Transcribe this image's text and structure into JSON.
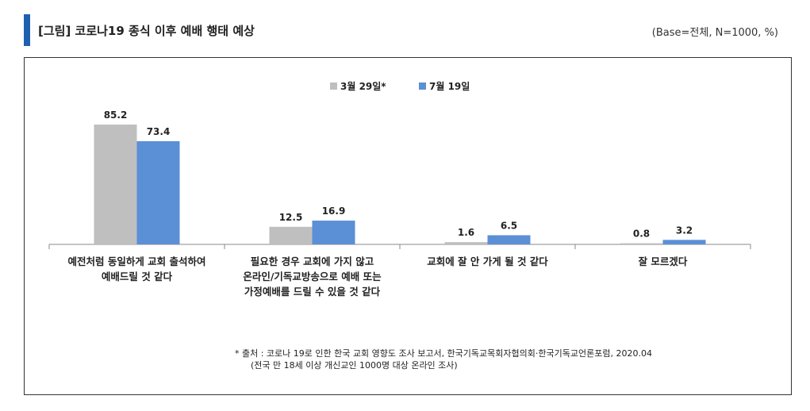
{
  "header": {
    "title": "[그림] 코로나19 종식 이후 예배 행태 예상",
    "base_note": "(Base=전체, N=1000, %)"
  },
  "colors": {
    "accent": "#1f5fb0",
    "series1": "#bfbfbf",
    "series2": "#5b8fd6"
  },
  "chart_data": {
    "type": "bar",
    "categories": [
      [
        "예전처럼 동일하게 교회 출석하여",
        "예배드릴 것 같다"
      ],
      [
        "필요한 경우 교회에 가지 않고",
        "온라인/기독교방송으로 예배 또는",
        "가정예배를 드릴 수 있을 것 같다"
      ],
      [
        "교회에 잘 안 가게 될 것 같다"
      ],
      [
        "잘 모르겠다"
      ]
    ],
    "series": [
      {
        "name": "3월 29일*",
        "values": [
          85.2,
          12.5,
          1.6,
          0.8
        ]
      },
      {
        "name": "7월 19일",
        "values": [
          73.4,
          16.9,
          6.5,
          3.2
        ]
      }
    ],
    "ylim": [
      0,
      100
    ],
    "grid": false,
    "legend": "top-center"
  },
  "source": {
    "line1": "* 출처 : 코로나 19로 인한 한국 교회 영향도 조사 보고서, 한국기독교목회자협의회·한국기독교언론포럼, 2020.04",
    "line2": "(전국 만 18세 이상 개신교인 1000명 대상 온라인 조사)"
  }
}
